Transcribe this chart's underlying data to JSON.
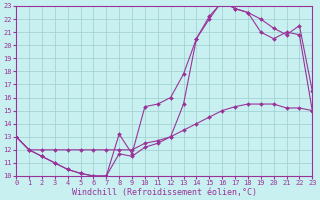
{
  "xlabel": "Windchill (Refroidissement éolien,°C)",
  "bg_color": "#c8f0f0",
  "line_color": "#993399",
  "xlim": [
    0,
    23
  ],
  "ylim": [
    10,
    23
  ],
  "xticks": [
    0,
    1,
    2,
    3,
    4,
    5,
    6,
    7,
    8,
    9,
    10,
    11,
    12,
    13,
    14,
    15,
    16,
    17,
    18,
    19,
    20,
    21,
    22,
    23
  ],
  "yticks": [
    10,
    11,
    12,
    13,
    14,
    15,
    16,
    17,
    18,
    19,
    20,
    21,
    22,
    23
  ],
  "line1_x": [
    0,
    1,
    2,
    3,
    4,
    5,
    6,
    7,
    8,
    9,
    10,
    11,
    12,
    13,
    14,
    15,
    16,
    17,
    18,
    19,
    20,
    21,
    22,
    23
  ],
  "line1_y": [
    13,
    12,
    11.5,
    11.0,
    10.5,
    10.2,
    10.0,
    10.0,
    11.7,
    11.5,
    12.2,
    12.5,
    13.0,
    15.5,
    20.5,
    22.2,
    23.3,
    22.8,
    22.5,
    21.0,
    20.5,
    21.0,
    20.8,
    15.0
  ],
  "line2_x": [
    0,
    1,
    2,
    3,
    4,
    5,
    6,
    7,
    8,
    9,
    10,
    11,
    12,
    13,
    14,
    15,
    16,
    17,
    18,
    19,
    20,
    21,
    22,
    23
  ],
  "line2_y": [
    13,
    12,
    11.5,
    11.0,
    10.5,
    10.2,
    10.0,
    10.0,
    13.2,
    11.7,
    15.3,
    15.5,
    16.0,
    17.8,
    20.5,
    22.0,
    23.4,
    22.8,
    22.5,
    22.0,
    21.3,
    20.8,
    21.5,
    16.5
  ],
  "line3_x": [
    0,
    1,
    2,
    3,
    4,
    5,
    6,
    7,
    8,
    9,
    10,
    11,
    12,
    13,
    14,
    15,
    16,
    17,
    18,
    19,
    20,
    21,
    22,
    23
  ],
  "line3_y": [
    13,
    12.0,
    12.0,
    12.0,
    12.0,
    12.0,
    12.0,
    12.0,
    12.0,
    12.0,
    12.5,
    12.7,
    13.0,
    13.5,
    14.0,
    14.5,
    15.0,
    15.3,
    15.5,
    15.5,
    15.5,
    15.2,
    15.2,
    15.0
  ],
  "markersize": 2.0,
  "linewidth": 0.8,
  "grid_color": "#9ecece",
  "tick_fontsize": 5.0,
  "xlabel_fontsize": 6.0
}
